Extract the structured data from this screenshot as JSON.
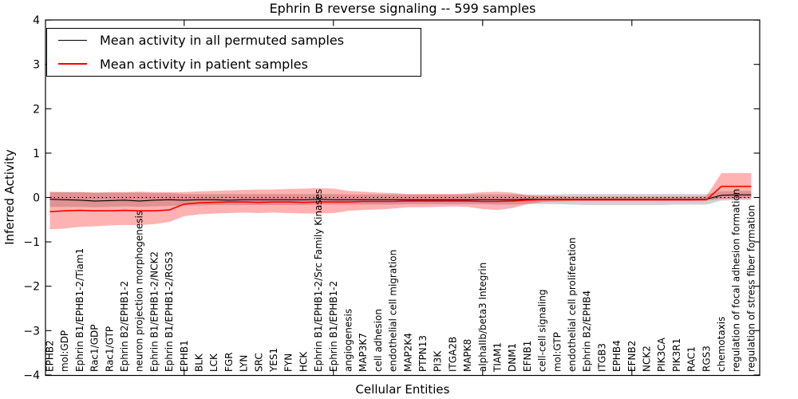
{
  "chart_data": {
    "type": "line",
    "title": "Ephrin B reverse signaling -- 599 samples",
    "xlabel": "Cellular Entities",
    "ylabel": "Inferred Activity",
    "ylim": [
      -4,
      4
    ],
    "grid": false,
    "ytick_values": [
      4,
      3,
      2,
      1,
      0,
      -1,
      -2,
      -3,
      -4
    ],
    "ytick_labels": [
      "4",
      "3",
      "2",
      "1",
      "0",
      "−1",
      "−2",
      "−3",
      "−4"
    ],
    "x_major_tick_indices": [
      9,
      19,
      29,
      39
    ],
    "legend": {
      "position": "upper left",
      "entries": [
        {
          "label": "Mean activity in all permuted samples",
          "color": "#000000"
        },
        {
          "label": "Mean activity in patient samples",
          "color": "#ff0000"
        }
      ]
    },
    "baseline": {
      "value": 0,
      "style": "dotted",
      "color": "#000000"
    },
    "categories": [
      "EPHB2",
      "mol:GDP",
      "Ephrin B1/EPHB1-2/Tiam1",
      "Rac1/GDP",
      "Rac1/GTP",
      "Ephrin B2/EPHB1-2",
      "neuron projection morphogenesis",
      "Ephrin B1/EPHB1-2/NCK2",
      "Ephrin B1/EPHB1-2/RGS3",
      "EPHB1",
      "BLK",
      "LCK",
      "FGR",
      "LYN",
      "SRC",
      "YES1",
      "FYN",
      "HCK",
      "Ephrin B1/EPHB1-2/Src Family Kinases",
      "Ephrin B1/EPHB1-2",
      "angiogenesis",
      "MAP3K7",
      "cell adhesion",
      "endothelial cell migration",
      "MAP2K4",
      "PTPN13",
      "PI3K",
      "ITGA2B",
      "MAPK8",
      "alphaIIb/beta3 Integrin",
      "TIAM1",
      "DNM1",
      "EFNB1",
      "cell-cell signaling",
      "mol:GTP",
      "endothelial cell proliferation",
      "Ephrin B2/EPHB4",
      "ITGB3",
      "EPHB4",
      "EFNB2",
      "NCK2",
      "PIK3CA",
      "PIK3R1",
      "RAC1",
      "RGS3",
      "chemotaxis",
      "regulation of focal adhesion formation",
      "regulation of stress fiber formation"
    ],
    "series": [
      {
        "name": "Mean activity in all permuted samples",
        "color": "#000000",
        "style": "solid",
        "width": 1.1,
        "values": [
          -0.04,
          -0.05,
          -0.06,
          -0.08,
          -0.07,
          -0.06,
          -0.08,
          -0.06,
          -0.05,
          -0.06,
          -0.05,
          -0.05,
          -0.06,
          -0.05,
          -0.05,
          -0.05,
          -0.05,
          -0.05,
          -0.04,
          -0.05,
          -0.05,
          -0.05,
          -0.05,
          -0.05,
          -0.05,
          -0.05,
          -0.05,
          -0.05,
          -0.05,
          -0.05,
          -0.05,
          -0.05,
          -0.04,
          -0.04,
          -0.04,
          -0.04,
          -0.04,
          -0.04,
          -0.04,
          -0.04,
          -0.04,
          -0.04,
          -0.04,
          -0.04,
          -0.04,
          0.05,
          0.06,
          0.06
        ]
      },
      {
        "name": "Mean activity in patient samples",
        "color": "#ff0000",
        "style": "solid",
        "width": 1.6,
        "values": [
          -0.32,
          -0.3,
          -0.29,
          -0.3,
          -0.3,
          -0.29,
          -0.3,
          -0.3,
          -0.28,
          -0.15,
          -0.12,
          -0.11,
          -0.1,
          -0.1,
          -0.11,
          -0.1,
          -0.1,
          -0.11,
          -0.1,
          -0.1,
          -0.1,
          -0.09,
          -0.09,
          -0.09,
          -0.08,
          -0.08,
          -0.08,
          -0.08,
          -0.08,
          -0.09,
          -0.09,
          -0.08,
          -0.06,
          -0.05,
          -0.05,
          -0.05,
          -0.05,
          -0.05,
          -0.05,
          -0.05,
          -0.05,
          -0.05,
          -0.05,
          -0.05,
          -0.05,
          0.25,
          0.25,
          0.25
        ]
      }
    ],
    "bands": [
      {
        "name": "permuted samples range",
        "color": "#000000",
        "opacity": 0.18,
        "upper": [
          0.12,
          0.12,
          0.12,
          0.11,
          0.11,
          0.11,
          0.11,
          0.1,
          0.1,
          0.08,
          0.08,
          0.08,
          0.08,
          0.08,
          0.08,
          0.08,
          0.08,
          0.08,
          0.08,
          0.08,
          0.07,
          0.07,
          0.07,
          0.07,
          0.07,
          0.07,
          0.07,
          0.07,
          0.07,
          0.07,
          0.07,
          0.07,
          0.07,
          0.07,
          0.07,
          0.08,
          0.08,
          0.08,
          0.08,
          0.08,
          0.08,
          0.08,
          0.08,
          0.08,
          0.08,
          0.14,
          0.15,
          0.15
        ],
        "lower": [
          -0.21,
          -0.21,
          -0.21,
          -0.22,
          -0.21,
          -0.2,
          -0.21,
          -0.2,
          -0.19,
          -0.18,
          -0.18,
          -0.17,
          -0.17,
          -0.17,
          -0.17,
          -0.17,
          -0.17,
          -0.17,
          -0.16,
          -0.16,
          -0.16,
          -0.16,
          -0.16,
          -0.16,
          -0.15,
          -0.15,
          -0.15,
          -0.15,
          -0.15,
          -0.15,
          -0.16,
          -0.16,
          -0.15,
          -0.15,
          -0.15,
          -0.16,
          -0.17,
          -0.17,
          -0.17,
          -0.17,
          -0.17,
          -0.17,
          -0.16,
          -0.16,
          -0.16,
          -0.07,
          -0.06,
          -0.06
        ]
      },
      {
        "name": "patient samples range",
        "color": "#ff0000",
        "opacity": 0.3,
        "upper": [
          0.13,
          0.12,
          0.12,
          0.11,
          0.12,
          0.12,
          0.13,
          0.12,
          0.12,
          0.12,
          0.14,
          0.15,
          0.16,
          0.17,
          0.18,
          0.18,
          0.19,
          0.2,
          0.21,
          0.2,
          0.15,
          0.13,
          0.11,
          0.1,
          0.08,
          0.08,
          0.08,
          0.08,
          0.09,
          0.12,
          0.13,
          0.11,
          0.05,
          0.03,
          0.03,
          0.02,
          0.02,
          0.02,
          0.02,
          0.02,
          0.02,
          0.02,
          0.02,
          0.02,
          0.03,
          0.55,
          0.55,
          0.55
        ],
        "lower": [
          -0.72,
          -0.7,
          -0.66,
          -0.65,
          -0.63,
          -0.62,
          -0.62,
          -0.6,
          -0.55,
          -0.42,
          -0.38,
          -0.36,
          -0.35,
          -0.34,
          -0.35,
          -0.34,
          -0.35,
          -0.36,
          -0.36,
          -0.35,
          -0.3,
          -0.28,
          -0.27,
          -0.25,
          -0.22,
          -0.22,
          -0.21,
          -0.2,
          -0.21,
          -0.26,
          -0.28,
          -0.24,
          -0.15,
          -0.1,
          -0.09,
          -0.08,
          -0.08,
          -0.08,
          -0.08,
          -0.08,
          -0.08,
          -0.08,
          -0.08,
          -0.08,
          -0.07,
          -0.03,
          -0.02,
          -0.02
        ]
      }
    ]
  }
}
